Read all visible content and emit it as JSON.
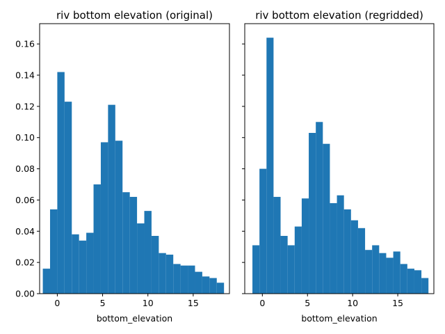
{
  "chart_data": [
    {
      "type": "bar",
      "title": "riv bottom elevation (original)",
      "xlabel": "bottom_elevation",
      "ylabel": "",
      "xlim": [
        -1.95,
        19.0
      ],
      "ylim": [
        0,
        0.173
      ],
      "x_ticks": [
        0,
        5,
        10,
        15
      ],
      "y_ticks": [
        0.0,
        0.02,
        0.04,
        0.06,
        0.08,
        0.1,
        0.12,
        0.14,
        0.16
      ],
      "y_tick_labels": [
        "0.00",
        "0.02",
        "0.04",
        "0.06",
        "0.08",
        "0.10",
        "0.12",
        "0.14",
        "0.16"
      ],
      "bin_start": -1.6,
      "bin_width": 0.8,
      "values": [
        0.016,
        0.054,
        0.142,
        0.123,
        0.038,
        0.034,
        0.039,
        0.07,
        0.097,
        0.121,
        0.098,
        0.065,
        0.062,
        0.045,
        0.053,
        0.037,
        0.026,
        0.025,
        0.019,
        0.018,
        0.018,
        0.014,
        0.011,
        0.01,
        0.007
      ],
      "color": "#1f77b4",
      "grid": false
    },
    {
      "type": "bar",
      "title": "riv bottom elevation (regridded)",
      "xlabel": "bottom_elevation",
      "ylabel": "",
      "xlim": [
        -1.95,
        19.0
      ],
      "ylim": [
        0,
        0.173
      ],
      "x_ticks": [
        0,
        5,
        10,
        15
      ],
      "y_ticks": [
        0.0,
        0.02,
        0.04,
        0.06,
        0.08,
        0.1,
        0.12,
        0.14,
        0.16
      ],
      "y_tick_labels": [
        "",
        "",
        "",
        "",
        "",
        "",
        "",
        "",
        ""
      ],
      "bin_start": -1.1,
      "bin_width": 0.78,
      "values": [
        0.031,
        0.08,
        0.164,
        0.062,
        0.037,
        0.031,
        0.043,
        0.061,
        0.103,
        0.11,
        0.096,
        0.058,
        0.063,
        0.054,
        0.047,
        0.042,
        0.028,
        0.031,
        0.026,
        0.023,
        0.027,
        0.019,
        0.016,
        0.015,
        0.01
      ],
      "color": "#1f77b4",
      "grid": false
    }
  ]
}
